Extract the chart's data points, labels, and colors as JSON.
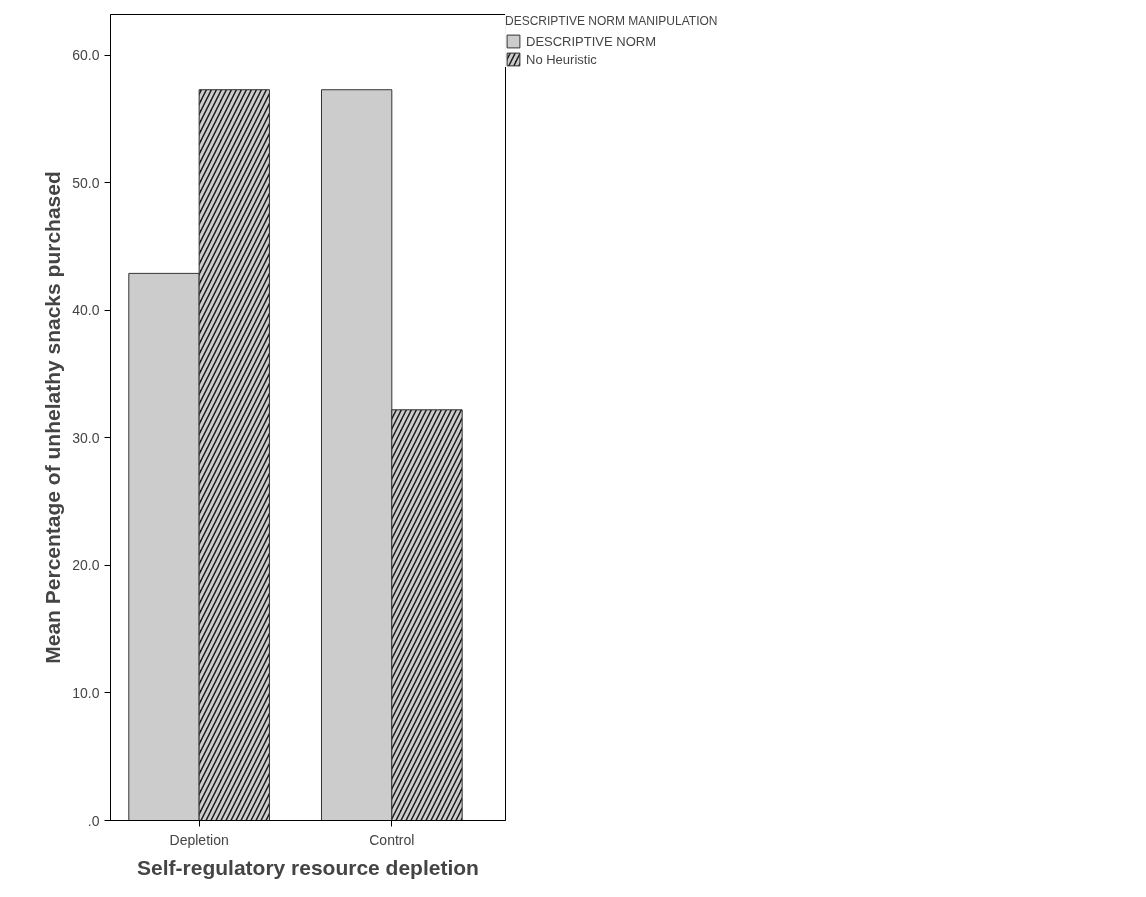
{
  "chart_data": {
    "type": "bar",
    "xlabel": "Self-regulatory resource depletion",
    "ylabel": "Mean Percentage of unhelathy snacks purchased",
    "legend_title": "DESCRIPTIVE NORM MANIPULATION",
    "legend": "top right",
    "grid": false,
    "categories": [
      "Depletion",
      "Control"
    ],
    "series": [
      {
        "name": "DESCRIPTIVE NORM",
        "color": "#cccccc",
        "values": [
          42.9,
          57.3
        ]
      },
      {
        "name": "No Heuristic",
        "color": "#1a1a1a",
        "values": [
          57.3,
          32.2
        ]
      }
    ],
    "ylim": [
      0,
      63.2
    ],
    "yticks": [
      {
        "value": 0,
        "label": ".0"
      },
      {
        "value": 10,
        "label": "10.0"
      },
      {
        "value": 20,
        "label": "20.0"
      },
      {
        "value": 30,
        "label": "30.0"
      },
      {
        "value": 40,
        "label": "40.0"
      },
      {
        "value": 50,
        "label": "50.0"
      },
      {
        "value": 60,
        "label": "60.0"
      }
    ]
  }
}
